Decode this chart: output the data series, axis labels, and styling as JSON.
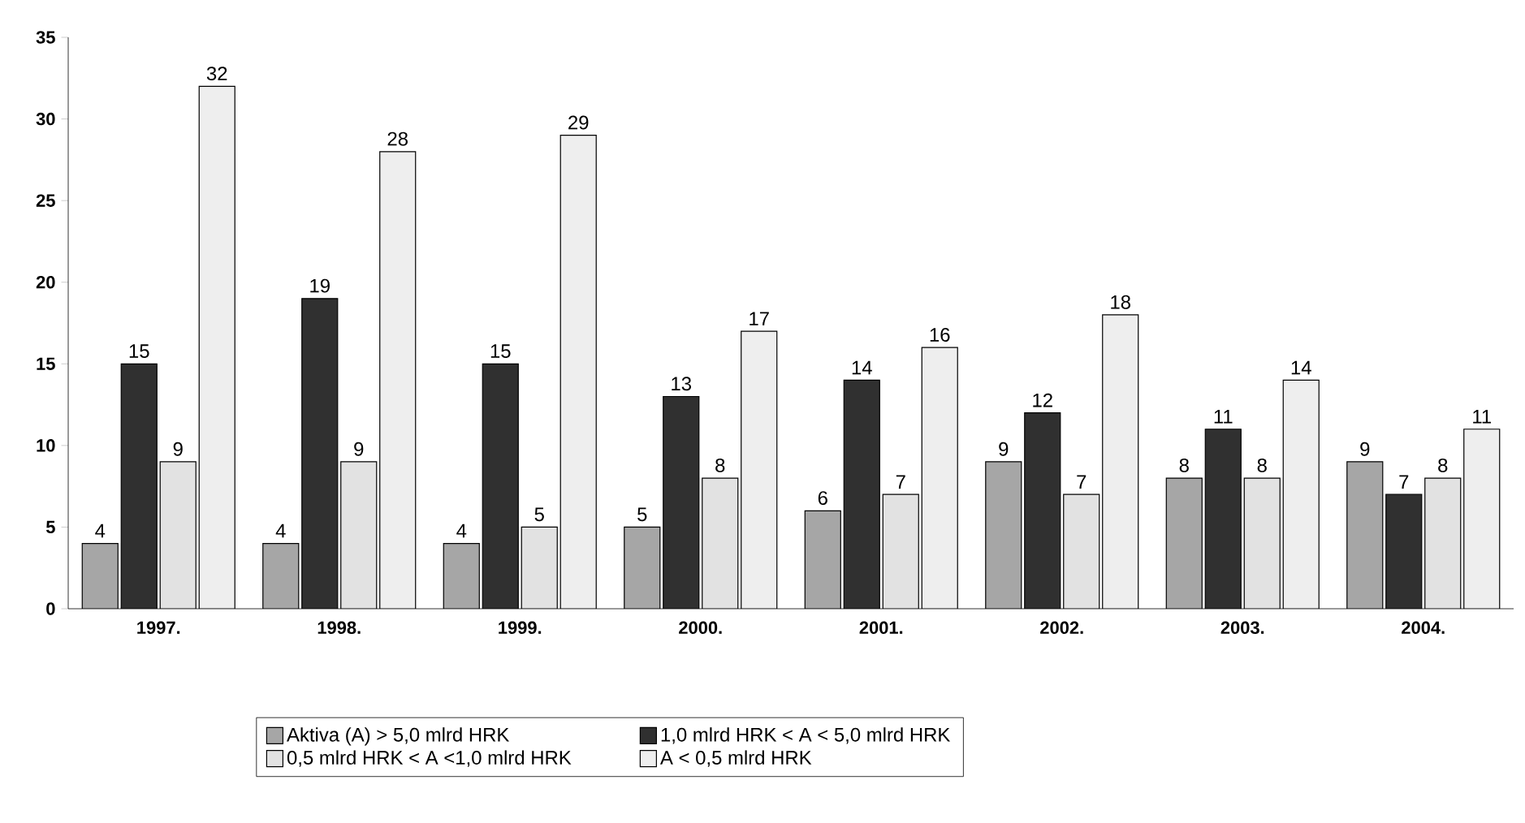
{
  "chart_data": {
    "type": "bar",
    "categories": [
      "1997.",
      "1998.",
      "1999.",
      "2000.",
      "2001.",
      "2002.",
      "2003.",
      "2004."
    ],
    "series": [
      {
        "name": "Aktiva (A) > 5,0 mlrd HRK",
        "color": "#a6a6a6",
        "values": [
          4,
          4,
          4,
          5,
          6,
          9,
          8,
          9
        ]
      },
      {
        "name": "1,0 mlrd HRK < A < 5,0 mlrd HRK",
        "color": "#303030",
        "values": [
          15,
          19,
          15,
          13,
          14,
          12,
          11,
          7
        ]
      },
      {
        "name": "0,5 mlrd HRK < A <1,0 mlrd HRK",
        "color": "#e2e2e2",
        "values": [
          9,
          9,
          5,
          8,
          7,
          7,
          8,
          8
        ]
      },
      {
        "name": "A < 0,5 mlrd HRK",
        "color": "#eeeeee",
        "values": [
          32,
          28,
          29,
          17,
          16,
          18,
          14,
          11
        ]
      }
    ],
    "ylim": [
      0,
      35
    ],
    "yticks": [
      0,
      5,
      10,
      15,
      20,
      25,
      30,
      35
    ],
    "data_labels": true,
    "legend": "bottom"
  }
}
